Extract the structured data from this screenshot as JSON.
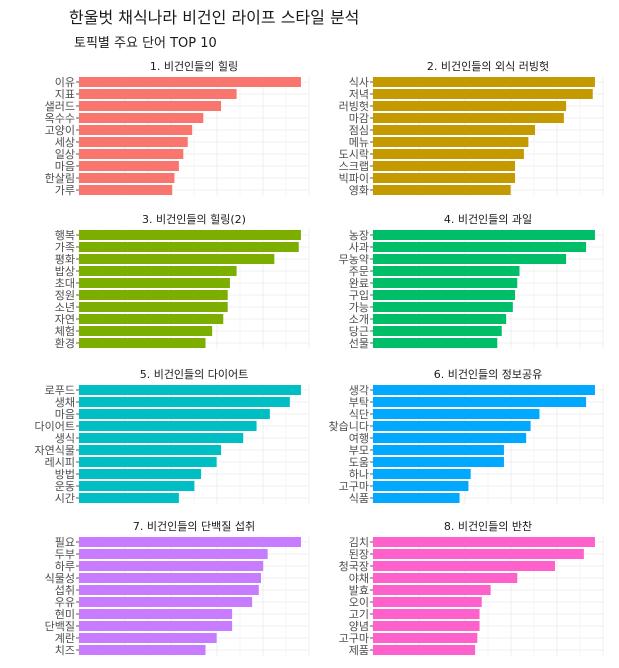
{
  "title": "한울벗 채식나라 비건인 라이프 스타일 분석",
  "subtitle": "토픽별 주요 단어 TOP 10",
  "chart_data": {
    "type": "bar",
    "orientation": "horizontal",
    "grid": true,
    "panels": [
      {
        "title": "1. 비건인들의 힐링",
        "color": "#F8766D",
        "categories": [
          "이유",
          "지표",
          "샐러드",
          "옥수수",
          "고양이",
          "세상",
          "일상",
          "마음",
          "한살림",
          "가루"
        ],
        "values": [
          1.0,
          0.71,
          0.64,
          0.56,
          0.51,
          0.49,
          0.47,
          0.45,
          0.43,
          0.42
        ]
      },
      {
        "title": "2. 비건인들의 외식 러빙헛",
        "color": "#C49A00",
        "categories": [
          "식사",
          "저녁",
          "러빙헛",
          "마감",
          "점심",
          "메뉴",
          "도시락",
          "스크랩",
          "빅파이",
          "영화"
        ],
        "values": [
          1.0,
          0.99,
          0.87,
          0.86,
          0.73,
          0.7,
          0.68,
          0.64,
          0.64,
          0.62
        ]
      },
      {
        "title": "3. 비건인들의 힐링(2)",
        "color": "#7CAE00",
        "categories": [
          "행복",
          "가족",
          "평화",
          "밥상",
          "초대",
          "정원",
          "소년",
          "자연",
          "체험",
          "환경"
        ],
        "values": [
          1.0,
          0.99,
          0.88,
          0.71,
          0.68,
          0.67,
          0.67,
          0.65,
          0.6,
          0.57
        ]
      },
      {
        "title": "4. 비건인들의 과일",
        "color": "#00BE67",
        "categories": [
          "농장",
          "사과",
          "무농약",
          "주문",
          "완료",
          "구입",
          "가능",
          "소개",
          "당근",
          "선물"
        ],
        "values": [
          1.0,
          0.96,
          0.87,
          0.66,
          0.65,
          0.64,
          0.63,
          0.6,
          0.58,
          0.56
        ]
      },
      {
        "title": "5. 비건인들의 다이어트",
        "color": "#00BFC4",
        "categories": [
          "로푸드",
          "생채",
          "마음",
          "다이어트",
          "생식",
          "자연식물",
          "레시피",
          "방법",
          "운동",
          "시간"
        ],
        "values": [
          1.0,
          0.95,
          0.86,
          0.8,
          0.74,
          0.64,
          0.62,
          0.55,
          0.52,
          0.45
        ]
      },
      {
        "title": "6. 비건인들의 정보공유",
        "color": "#00A9FF",
        "categories": [
          "생각",
          "부탁",
          "식단",
          "찾습니다",
          "여행",
          "부모",
          "도움",
          "하나",
          "고구마",
          "식품"
        ],
        "values": [
          1.0,
          0.96,
          0.75,
          0.71,
          0.69,
          0.59,
          0.59,
          0.44,
          0.43,
          0.39
        ]
      },
      {
        "title": "7. 비건인들의 단백질 섭취",
        "color": "#C77CFF",
        "categories": [
          "필요",
          "두부",
          "하루",
          "식물성",
          "섭취",
          "우유",
          "현미",
          "단백질",
          "계란",
          "치즈"
        ],
        "values": [
          1.0,
          0.85,
          0.83,
          0.82,
          0.81,
          0.78,
          0.69,
          0.69,
          0.62,
          0.57
        ]
      },
      {
        "title": "8. 비건인들의 반찬",
        "color": "#FF61CC",
        "categories": [
          "김치",
          "된장",
          "청국장",
          "야채",
          "발효",
          "오이",
          "고기",
          "양념",
          "고구마",
          "제품"
        ],
        "values": [
          1.0,
          0.95,
          0.82,
          0.65,
          0.53,
          0.49,
          0.48,
          0.48,
          0.47,
          0.46
        ]
      }
    ]
  }
}
